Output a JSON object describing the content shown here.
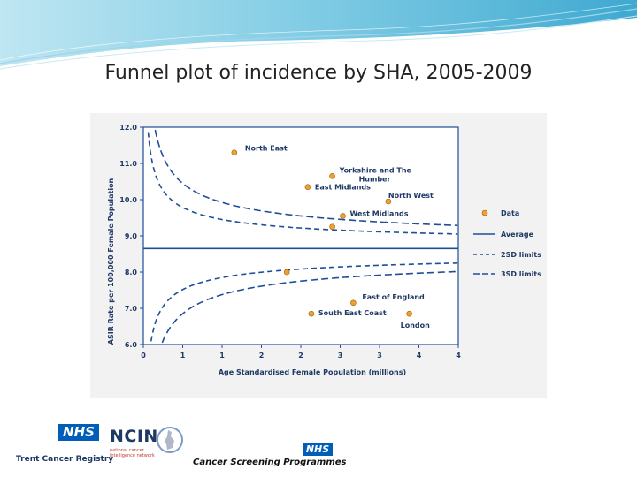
{
  "slide": {
    "title": "Funnel plot of incidence by SHA, 2005-2009"
  },
  "chart_data": {
    "type": "scatter",
    "title": "",
    "xlabel": "Age Standardised  Female Population  (millions)",
    "ylabel": "ASIR Rate per 100,000  Female Population",
    "xlim": [
      0,
      4.5
    ],
    "ylim": [
      6.0,
      12.0
    ],
    "x_tick_labels": [
      "0",
      "1",
      "1",
      "2",
      "2",
      "3",
      "3",
      "4",
      "4"
    ],
    "y_tick_labels": [
      "6.0",
      "7.0",
      "8.0",
      "9.0",
      "10.0",
      "11.0",
      "12.0"
    ],
    "average": 8.65,
    "grid": false,
    "legend_position": "right",
    "legend": [
      "Data",
      "Average",
      "2SD limits",
      "3SD limits"
    ],
    "colors": {
      "points": "#f0a030",
      "lines": "#1f4e99",
      "text": "#1f3864"
    },
    "points": [
      {
        "label": "North East",
        "x": 1.3,
        "y": 11.3
      },
      {
        "label": "Yorkshire and The Humber",
        "x": 2.7,
        "y": 10.65
      },
      {
        "label": "East Midlands",
        "x": 2.35,
        "y": 10.35
      },
      {
        "label": "North West",
        "x": 3.5,
        "y": 9.95
      },
      {
        "label": "West Midlands",
        "x": 2.85,
        "y": 9.55
      },
      {
        "label": "",
        "x": 2.7,
        "y": 9.25
      },
      {
        "label": "",
        "x": 2.05,
        "y": 8.0
      },
      {
        "label": "East of England",
        "x": 3.0,
        "y": 7.15
      },
      {
        "label": "South East Coast",
        "x": 2.4,
        "y": 6.85
      },
      {
        "label": "London",
        "x": 3.8,
        "y": 6.85
      }
    ]
  },
  "logos": {
    "nhs_left": "NHS",
    "trent": "Trent Cancer Registry",
    "ncin": "NCIN",
    "ncin_sub": "national cancer intelligence network",
    "nhs_right": "NHS",
    "screening": "Cancer Screening Programmes"
  }
}
